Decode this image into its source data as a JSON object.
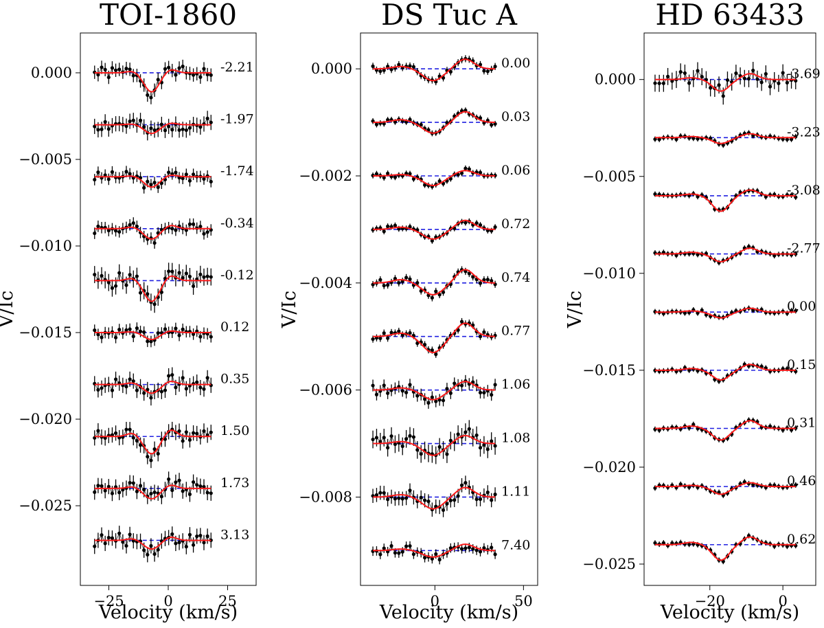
{
  "figure": {
    "xlabel": "Velocity (km/s)",
    "ylabel": "V/Ic"
  },
  "chart_data": [
    {
      "type": "line",
      "title": "TOI-1860",
      "xlabel": "Velocity (km/s)",
      "ylabel": "V/Ic",
      "xlim": [
        -37,
        37
      ],
      "ylim": [
        -0.0296,
        0.0023
      ],
      "x_ticks": [
        -25,
        0,
        25
      ],
      "x_tick_labels": [
        "−25",
        "0",
        "25"
      ],
      "y_ticks": [
        0,
        -0.005,
        -0.01,
        -0.015,
        -0.02,
        -0.025
      ],
      "y_tick_labels": [
        "0.000",
        "−0.005",
        "−0.010",
        "−0.015",
        "−0.020",
        "−0.025"
      ],
      "x_range": [
        -31,
        18
      ],
      "offset_step": -0.003,
      "profile": {
        "center": -7,
        "width": 4.5,
        "wing_offset": 8,
        "wing_width": 3.5,
        "lobe_ratio": 0.5
      },
      "series": [
        {
          "label": "-2.21",
          "offset": 0.0,
          "depth": 0.0011,
          "noise": 0.00035,
          "wing_amp": 0.0002,
          "seed": 1
        },
        {
          "label": "-1.97",
          "offset": -0.003,
          "depth": 0.0005,
          "noise": 0.0004,
          "wing_amp": 0.0001,
          "seed": 2
        },
        {
          "label": "-1.74",
          "offset": -0.006,
          "depth": 0.0006,
          "noise": 0.0003,
          "wing_amp": 0.0001,
          "seed": 3
        },
        {
          "label": "-0.34",
          "offset": -0.009,
          "depth": 0.0006,
          "noise": 0.0003,
          "wing_amp": 0.0002,
          "seed": 4
        },
        {
          "label": "-0.12",
          "offset": -0.012,
          "depth": 0.0012,
          "noise": 0.00045,
          "wing_amp": 0.0003,
          "seed": 5
        },
        {
          "label": "0.12",
          "offset": -0.015,
          "depth": 0.0004,
          "noise": 0.0003,
          "wing_amp": 0.0001,
          "seed": 6
        },
        {
          "label": "0.35",
          "offset": -0.018,
          "depth": 0.0005,
          "noise": 0.0004,
          "wing_amp": 0.0002,
          "seed": 7
        },
        {
          "label": "1.50",
          "offset": -0.021,
          "depth": 0.001,
          "noise": 0.0004,
          "wing_amp": 0.0004,
          "seed": 8
        },
        {
          "label": "1.73",
          "offset": -0.024,
          "depth": 0.0006,
          "noise": 0.0004,
          "wing_amp": 0.0002,
          "seed": 9
        },
        {
          "label": "3.13",
          "offset": -0.027,
          "depth": 0.0005,
          "noise": 0.0004,
          "wing_amp": 0.0002,
          "seed": 10
        }
      ]
    },
    {
      "type": "line",
      "title": "DS Tuc A",
      "xlabel": "Velocity (km/s)",
      "ylabel": "V/Ic",
      "xlim": [
        -42,
        58
      ],
      "ylim": [
        -0.00965,
        0.00067
      ],
      "x_ticks": [
        0,
        50
      ],
      "x_tick_labels": [
        "0",
        "50"
      ],
      "y_ticks": [
        0,
        -0.002,
        -0.004,
        -0.006,
        -0.008
      ],
      "y_tick_labels": [
        "0.000",
        "−0.002",
        "−0.004",
        "−0.006",
        "−0.008"
      ],
      "x_range": [
        -35,
        34
      ],
      "offset_step": -0.001,
      "profile": {
        "center": -1,
        "width": 8,
        "wing_offset": 18,
        "wing_width": 7,
        "lobe_ratio": 0.25
      },
      "series": [
        {
          "label": "0.00",
          "offset": 0.0,
          "depth": 0.00022,
          "noise": 6e-05,
          "wing_amp": 0.00018,
          "seed": 11
        },
        {
          "label": "0.03",
          "offset": -0.001,
          "depth": 0.0002,
          "noise": 5e-05,
          "wing_amp": 0.0002,
          "seed": 12
        },
        {
          "label": "0.06",
          "offset": -0.002,
          "depth": 0.00018,
          "noise": 5e-05,
          "wing_amp": 0.0001,
          "seed": 13
        },
        {
          "label": "0.72",
          "offset": -0.003,
          "depth": 0.00018,
          "noise": 5e-05,
          "wing_amp": 0.00017,
          "seed": 14
        },
        {
          "label": "0.74",
          "offset": -0.004,
          "depth": 0.00022,
          "noise": 6e-05,
          "wing_amp": 0.00025,
          "seed": 15
        },
        {
          "label": "0.77",
          "offset": -0.005,
          "depth": 0.0003,
          "noise": 6e-05,
          "wing_amp": 0.00025,
          "seed": 16
        },
        {
          "label": "1.06",
          "offset": -0.006,
          "depth": 0.00018,
          "noise": 0.0001,
          "wing_amp": 0.00016,
          "seed": 17
        },
        {
          "label": "1.08",
          "offset": -0.007,
          "depth": 0.00022,
          "noise": 0.00015,
          "wing_amp": 0.00015,
          "seed": 18
        },
        {
          "label": "1.11",
          "offset": -0.008,
          "depth": 0.00022,
          "noise": 0.00012,
          "wing_amp": 0.00018,
          "seed": 19
        },
        {
          "label": "7.40",
          "offset": -0.009,
          "depth": 0.00012,
          "noise": 8e-05,
          "wing_amp": 0.00012,
          "seed": 20
        }
      ]
    },
    {
      "type": "line",
      "title": "HD 63433",
      "xlabel": "Velocity (km/s)",
      "ylabel": "V/Ic",
      "xlim": [
        -38,
        9
      ],
      "ylim": [
        -0.0261,
        0.0024
      ],
      "x_ticks": [
        -20,
        0
      ],
      "x_tick_labels": [
        "−20",
        "0"
      ],
      "y_ticks": [
        0,
        -0.005,
        -0.01,
        -0.015,
        -0.02,
        -0.025
      ],
      "y_tick_labels": [
        "0.000",
        "−0.005",
        "−0.010",
        "−0.015",
        "−0.020",
        "−0.025"
      ],
      "x_range": [
        -35,
        3.5
      ],
      "offset_step": -0.003,
      "profile": {
        "center": -17,
        "width": 3.2,
        "wing_offset": 8,
        "wing_width": 3.0,
        "lobe_ratio": 0.3
      },
      "series": [
        {
          "label": "-3.69",
          "offset": 0.0,
          "depth": 0.0006,
          "noise": 0.0004,
          "wing_amp": 0.0003,
          "seed": 21
        },
        {
          "label": "-3.23",
          "offset": -0.003,
          "depth": 0.0003,
          "noise": 0.0001,
          "wing_amp": 0.0002,
          "seed": 22
        },
        {
          "label": "-3.08",
          "offset": -0.006,
          "depth": 0.0008,
          "noise": 0.0001,
          "wing_amp": 0.0003,
          "seed": 23
        },
        {
          "label": "-2.77",
          "offset": -0.009,
          "depth": 0.0004,
          "noise": 0.0001,
          "wing_amp": 0.0003,
          "seed": 24
        },
        {
          "label": "0.00",
          "offset": -0.012,
          "depth": 0.0003,
          "noise": 0.0001,
          "wing_amp": 0.0002,
          "seed": 25
        },
        {
          "label": "0.15",
          "offset": -0.015,
          "depth": 0.0005,
          "noise": 0.0001,
          "wing_amp": 0.0003,
          "seed": 26
        },
        {
          "label": "0.31",
          "offset": -0.018,
          "depth": 0.0006,
          "noise": 0.0001,
          "wing_amp": 0.0004,
          "seed": 27
        },
        {
          "label": "0.46",
          "offset": -0.021,
          "depth": 0.0004,
          "noise": 0.0001,
          "wing_amp": 0.0002,
          "seed": 28
        },
        {
          "label": "0.62",
          "offset": -0.024,
          "depth": 0.0008,
          "noise": 0.0001,
          "wing_amp": 0.0004,
          "seed": 29
        }
      ]
    }
  ]
}
